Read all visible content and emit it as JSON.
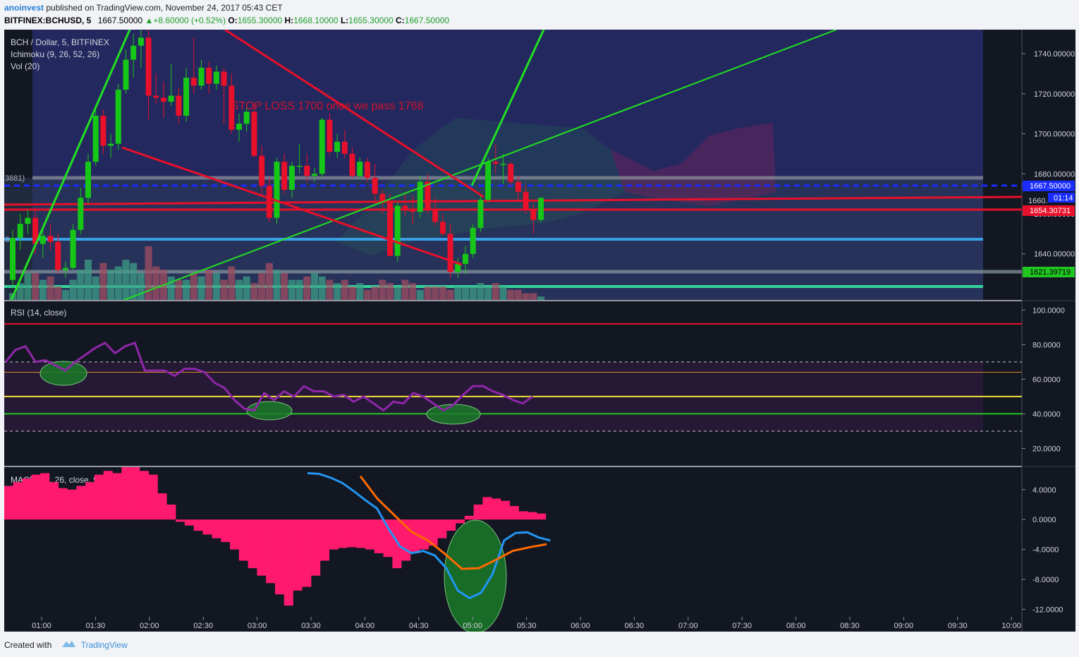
{
  "header": {
    "user": "anoinvest",
    "published_text": "published on TradingView.com, November 24, 2017 05:43 CET",
    "symbol": "BITFINEX:BCHUSD, 5",
    "price": "1667.50000",
    "change": "+8.60000 (+0.52%)",
    "o_label": "O:",
    "o_val": "1655.30000",
    "h_label": "H:",
    "h_val": "1668.10000",
    "l_label": "L:",
    "l_val": "1655.30000",
    "c_label": "C:",
    "c_val": "1667.50000"
  },
  "legend": {
    "main": "BCH / Dollar, 5, BITFINEX",
    "ichimoku": "Ichimoku (9, 26, 52, 26)",
    "vol": "Vol (20)",
    "rsi": "RSI (14, close)",
    "macd": "MACD (12, 26, close, 9)"
  },
  "annotation": {
    "text": "STOP LOSS 1700 once we pass  1768",
    "color": "#d0122a"
  },
  "left_edge_labels": {
    "a": "3881)",
    "b": "3"
  },
  "price_tags": {
    "current": "1667.50000",
    "timer": "01:14",
    "partial": "1660.",
    "red": "1654.30731",
    "green": "1621.39719"
  },
  "footer": {
    "created": "Created with",
    "brand": "TradingView"
  },
  "colors": {
    "bg": "#131722",
    "up": "#17c717",
    "down": "#e8102a",
    "rsi_line": "#8e27a8",
    "macd_line": "#2295f2",
    "signal_line": "#ff6a00",
    "hist": "#ff1a6e"
  },
  "chart_data": [
    {
      "type": "candlestick",
      "title": "BCH / Dollar, 5, BITFINEX",
      "ylim": [
        1617,
        1752
      ],
      "y_ticks": [
        "1740.00000",
        "1720.00000",
        "1700.00000",
        "1680.00000",
        "1660.00000",
        "1640.00000"
      ],
      "x_ticks": [
        "01:00",
        "01:30",
        "02:00",
        "02:30",
        "03:00",
        "03:30",
        "04:00",
        "04:30",
        "05:00",
        "05:30",
        "06:00",
        "06:30",
        "07:00",
        "07:30",
        "08:00",
        "08:30",
        "09:00",
        "09:30",
        "10:00"
      ],
      "candles_ohlc": [
        [
          1627,
          1652,
          1623,
          1648
        ],
        [
          1648,
          1660,
          1642,
          1655
        ],
        [
          1655,
          1662,
          1650,
          1658
        ],
        [
          1658,
          1663,
          1640,
          1645
        ],
        [
          1645,
          1652,
          1638,
          1649
        ],
        [
          1649,
          1655,
          1642,
          1646
        ],
        [
          1646,
          1650,
          1630,
          1632
        ],
        [
          1632,
          1636,
          1628,
          1633
        ],
        [
          1633,
          1655,
          1632,
          1652
        ],
        [
          1652,
          1673,
          1650,
          1668
        ],
        [
          1668,
          1690,
          1665,
          1686
        ],
        [
          1686,
          1712,
          1684,
          1709
        ],
        [
          1709,
          1712,
          1690,
          1694
        ],
        [
          1694,
          1700,
          1688,
          1695
        ],
        [
          1695,
          1725,
          1692,
          1722
        ],
        [
          1722,
          1742,
          1720,
          1737
        ],
        [
          1737,
          1750,
          1728,
          1744
        ],
        [
          1744,
          1752,
          1733,
          1748
        ],
        [
          1748,
          1752,
          1707,
          1719
        ],
        [
          1719,
          1730,
          1715,
          1718
        ],
        [
          1718,
          1726,
          1708,
          1716
        ],
        [
          1716,
          1735,
          1714,
          1719
        ],
        [
          1719,
          1723,
          1705,
          1709
        ],
        [
          1709,
          1733,
          1706,
          1728
        ],
        [
          1728,
          1748,
          1720,
          1724
        ],
        [
          1724,
          1737,
          1722,
          1733
        ],
        [
          1733,
          1736,
          1720,
          1725
        ],
        [
          1725,
          1734,
          1722,
          1731
        ],
        [
          1731,
          1733,
          1705,
          1724
        ],
        [
          1724,
          1730,
          1700,
          1702
        ],
        [
          1702,
          1710,
          1696,
          1705
        ],
        [
          1705,
          1713,
          1701,
          1711
        ],
        [
          1711,
          1715,
          1688,
          1689
        ],
        [
          1689,
          1694,
          1670,
          1674
        ],
        [
          1674,
          1678,
          1656,
          1658
        ],
        [
          1658,
          1688,
          1655,
          1686
        ],
        [
          1686,
          1690,
          1670,
          1672
        ],
        [
          1672,
          1686,
          1668,
          1684
        ],
        [
          1684,
          1695,
          1680,
          1684
        ],
        [
          1684,
          1690,
          1676,
          1679
        ],
        [
          1679,
          1683,
          1676,
          1680
        ],
        [
          1680,
          1708,
          1678,
          1707
        ],
        [
          1707,
          1710,
          1689,
          1691
        ],
        [
          1691,
          1700,
          1688,
          1696
        ],
        [
          1696,
          1702,
          1688,
          1690
        ],
        [
          1690,
          1693,
          1678,
          1679
        ],
        [
          1679,
          1688,
          1677,
          1686
        ],
        [
          1686,
          1688,
          1676,
          1678
        ],
        [
          1678,
          1685,
          1665,
          1670
        ],
        [
          1670,
          1672,
          1660,
          1666
        ],
        [
          1666,
          1670,
          1646,
          1639
        ],
        [
          1639,
          1666,
          1636,
          1664
        ],
        [
          1664,
          1670,
          1659,
          1662
        ],
        [
          1662,
          1669,
          1655,
          1661
        ],
        [
          1661,
          1679,
          1658,
          1676
        ],
        [
          1676,
          1680,
          1660,
          1662
        ],
        [
          1662,
          1668,
          1654,
          1656
        ],
        [
          1656,
          1660,
          1649,
          1650
        ],
        [
          1650,
          1655,
          1628,
          1631
        ],
        [
          1631,
          1638,
          1628,
          1635
        ],
        [
          1635,
          1644,
          1630,
          1640
        ],
        [
          1640,
          1655,
          1638,
          1653
        ],
        [
          1653,
          1669,
          1651,
          1667
        ],
        [
          1667,
          1688,
          1666,
          1686
        ],
        [
          1686,
          1695,
          1680,
          1685
        ],
        [
          1685,
          1690,
          1675,
          1685
        ],
        [
          1685,
          1686,
          1674,
          1676
        ],
        [
          1676,
          1679,
          1666,
          1671
        ],
        [
          1671,
          1674,
          1660,
          1662
        ],
        [
          1662,
          1665,
          1650,
          1657
        ],
        [
          1657,
          1668,
          1656,
          1668
        ]
      ],
      "volume_relative": [
        0.1,
        0.25,
        0.4,
        0.4,
        0.3,
        0.35,
        0.2,
        0.15,
        0.3,
        0.45,
        0.6,
        0.35,
        0.55,
        0.45,
        0.5,
        0.6,
        0.55,
        0.4,
        0.8,
        0.5,
        0.45,
        0.35,
        0.3,
        0.3,
        0.4,
        0.35,
        0.45,
        0.4,
        0.3,
        0.5,
        0.3,
        0.35,
        0.25,
        0.4,
        0.55,
        0.45,
        0.4,
        0.3,
        0.3,
        0.35,
        0.4,
        0.35,
        0.3,
        0.25,
        0.3,
        0.2,
        0.25,
        0.15,
        0.2,
        0.3,
        0.25,
        0.2,
        0.3,
        0.25,
        0.15,
        0.2,
        0.2,
        0.2,
        0.15,
        0.2,
        0.2,
        0.2,
        0.25,
        0.2,
        0.25,
        0.2,
        0.15,
        0.15,
        0.1,
        0.1,
        0.05
      ]
    },
    {
      "type": "line",
      "title": "RSI (14, close)",
      "ylim": [
        10,
        105
      ],
      "y_ticks": [
        "100.0000",
        "80.0000",
        "60.0000",
        "40.0000",
        "20.0000"
      ],
      "levels": [
        92,
        70,
        64,
        50,
        40,
        30
      ],
      "values": [
        70,
        77,
        79,
        70,
        71,
        68,
        65,
        70,
        74,
        78,
        81,
        75,
        79,
        81,
        65,
        65,
        65,
        62,
        66,
        66,
        64,
        58,
        55,
        48,
        43,
        42,
        52,
        48,
        53,
        50,
        56,
        53,
        53,
        50,
        51,
        47,
        50,
        46,
        42,
        47,
        46,
        52,
        50,
        46,
        42,
        45,
        51,
        56,
        56,
        53,
        51,
        48,
        46,
        50
      ]
    },
    {
      "type": "line",
      "title": "MACD (12, 26, close, 9)",
      "ylim": [
        -13,
        7
      ],
      "y_ticks": [
        "4.0000",
        "0.0000",
        "-4.0000",
        "-8.0000",
        "-12.0000"
      ],
      "histogram": [
        4.5,
        5,
        5.5,
        6,
        6.2,
        5,
        4.2,
        4,
        4.5,
        5,
        6,
        6.5,
        6.2,
        7,
        7,
        6.5,
        6,
        3.5,
        2,
        -0.3,
        -0.8,
        -1.5,
        -2,
        -2.5,
        -3,
        -4,
        -5.5,
        -6.5,
        -7.5,
        -8.5,
        -10,
        -11.5,
        -9.5,
        -9,
        -7.5,
        -5.5,
        -4,
        -3.8,
        -3.7,
        -3.8,
        -4,
        -4.5,
        -5,
        -6.5,
        -5.5,
        -4.5,
        -4,
        -3.5,
        -2.5,
        -1.5,
        -0.5,
        0.5,
        2,
        3,
        2.8,
        2.5,
        1.8,
        1.1,
        1,
        0.8
      ],
      "macd_line": [
        6.2,
        6.1,
        5.6,
        4.9,
        3.8,
        2.6,
        1.5,
        -1.2,
        -3.6,
        -4.5,
        -4.2,
        -4.8,
        -6.5,
        -9.5,
        -10.5,
        -9.8,
        -7.3,
        -2.8,
        -1.8,
        -1.7,
        -2.4,
        -2.8
      ],
      "signal_line": [
        5.8,
        2.8,
        0.6,
        -1.6,
        -2.8,
        -4.6,
        -6.6,
        -6.5,
        -5.4,
        -4.2,
        -3.7,
        -3.3
      ]
    }
  ]
}
